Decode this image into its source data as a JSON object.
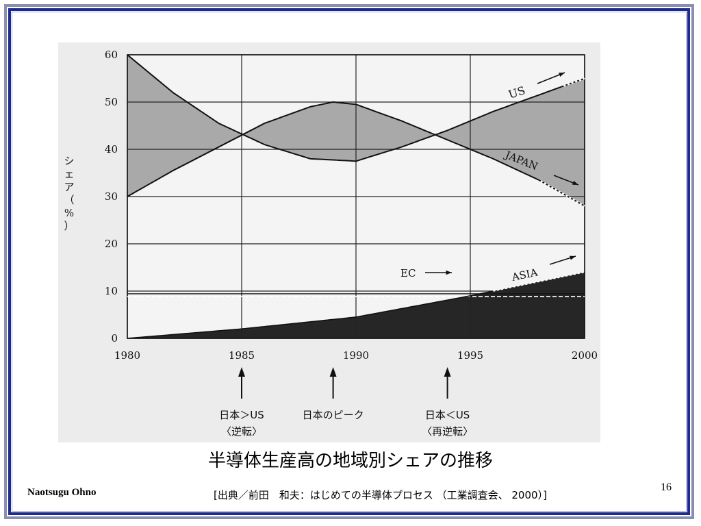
{
  "slide": {
    "title": "半導体生産高の地域別シェアの推移",
    "author": "Naotsugu Ohno",
    "source": "[出典／前田　和夫：はじめての半導体プロセス （工業調査会、 2000）]",
    "page_number": "16"
  },
  "colors": {
    "frame_blue": "#1d2a8f",
    "frame_grey": "#8a8fb0",
    "gap_shade": "#a9a9a9",
    "asia_fill": "#262626",
    "scan_bg": "#ececec"
  },
  "chart_data": {
    "type": "line",
    "title": "",
    "xlabel": "",
    "ylabel": "シェア（%）",
    "xlim": [
      1980,
      2000
    ],
    "ylim": [
      0,
      60
    ],
    "xticks": [
      "1980",
      "1985",
      "1990",
      "1995",
      "2000"
    ],
    "yticks": [
      "0",
      "10",
      "20",
      "30",
      "40",
      "50",
      "60"
    ],
    "grid": true,
    "series": [
      {
        "name": "US",
        "x": [
          1980,
          1982,
          1984,
          1986,
          1988,
          1990,
          1992,
          1994,
          1996,
          1998,
          2000
        ],
        "y": [
          60,
          52,
          45.5,
          41,
          38,
          37.5,
          40.5,
          44,
          48,
          51.5,
          55
        ],
        "projection_from": 1999
      },
      {
        "name": "JAPAN",
        "x": [
          1980,
          1982,
          1984,
          1986,
          1988,
          1989,
          1990,
          1992,
          1994,
          1996,
          1998,
          2000
        ],
        "y": [
          30,
          35.5,
          40.5,
          45.5,
          49,
          50,
          49.5,
          46,
          42,
          38,
          33.5,
          28
        ],
        "projection_from": 1998
      },
      {
        "name": "EC",
        "x": [
          1980,
          2000
        ],
        "y": [
          9,
          9
        ]
      },
      {
        "name": "ASIA",
        "x": [
          1980,
          1985,
          1990,
          1995,
          1998,
          2000
        ],
        "y": [
          0,
          2,
          4.5,
          9,
          12,
          14
        ],
        "projection_from": 1996
      }
    ],
    "annotations": [
      {
        "x": 1985,
        "label": "日本＞US",
        "sub": "〈逆転〉"
      },
      {
        "x": 1989,
        "label": "日本のピーク",
        "sub": ""
      },
      {
        "x": 1994,
        "label": "日本＜US",
        "sub": "〈再逆転〉"
      }
    ]
  }
}
